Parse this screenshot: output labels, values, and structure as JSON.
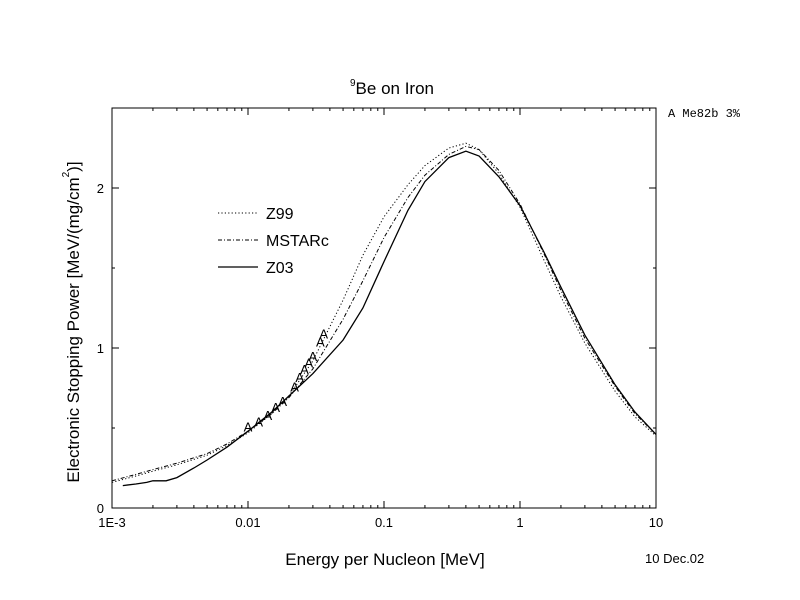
{
  "chart_data": {
    "type": "line",
    "title": {
      "superscript": "9",
      "text": "Be on Iron"
    },
    "xlabel": "Energy per Nucleon [MeV]",
    "ylabel": {
      "text": "Electronic Stopping Power [MeV/(mg/cm",
      "superscript": "2",
      "close": ")]"
    },
    "x_scale": "log",
    "xlim": [
      0.001,
      10
    ],
    "ylim": [
      0,
      2.5
    ],
    "x_ticks": [
      {
        "value": 0.001,
        "label": "1E-3"
      },
      {
        "value": 0.01,
        "label": "0.01"
      },
      {
        "value": 0.1,
        "label": "0.1"
      },
      {
        "value": 1,
        "label": "1"
      },
      {
        "value": 10,
        "label": "10"
      }
    ],
    "y_ticks": [
      {
        "value": 0,
        "label": "0"
      },
      {
        "value": 1,
        "label": "1"
      },
      {
        "value": 2,
        "label": "2"
      }
    ],
    "annotation_top_right": "A Me82b 3%",
    "date_label": "10 Dec.02",
    "legend_position": "upper-left",
    "series": [
      {
        "name": "Z99",
        "style": "dotted",
        "x": [
          0.001,
          0.0015,
          0.002,
          0.003,
          0.005,
          0.007,
          0.01,
          0.015,
          0.02,
          0.03,
          0.05,
          0.07,
          0.1,
          0.15,
          0.2,
          0.3,
          0.4,
          0.5,
          0.7,
          1,
          1.5,
          2,
          3,
          5,
          7,
          10
        ],
        "y": [
          0.16,
          0.2,
          0.23,
          0.27,
          0.33,
          0.39,
          0.47,
          0.59,
          0.7,
          0.92,
          1.3,
          1.58,
          1.82,
          2.02,
          2.14,
          2.25,
          2.28,
          2.24,
          2.09,
          1.88,
          1.55,
          1.32,
          1.03,
          0.73,
          0.57,
          0.45
        ]
      },
      {
        "name": "MSTARc",
        "style": "dashdot",
        "x": [
          0.001,
          0.0015,
          0.002,
          0.003,
          0.005,
          0.007,
          0.01,
          0.015,
          0.02,
          0.03,
          0.05,
          0.07,
          0.1,
          0.15,
          0.2,
          0.3,
          0.4,
          0.5,
          0.7,
          1,
          1.5,
          2,
          3,
          5,
          7,
          10
        ],
        "y": [
          0.17,
          0.21,
          0.24,
          0.28,
          0.34,
          0.4,
          0.48,
          0.59,
          0.69,
          0.87,
          1.18,
          1.42,
          1.69,
          1.94,
          2.08,
          2.21,
          2.26,
          2.24,
          2.11,
          1.9,
          1.59,
          1.36,
          1.06,
          0.76,
          0.59,
          0.46
        ]
      },
      {
        "name": "Z03",
        "style": "solid",
        "x": [
          0.0012,
          0.0015,
          0.0018,
          0.002,
          0.0025,
          0.003,
          0.004,
          0.005,
          0.007,
          0.01,
          0.015,
          0.02,
          0.03,
          0.05,
          0.07,
          0.1,
          0.15,
          0.2,
          0.3,
          0.4,
          0.5,
          0.7,
          1,
          1.5,
          2,
          3,
          5,
          7,
          10
        ],
        "y": [
          0.14,
          0.15,
          0.16,
          0.17,
          0.17,
          0.19,
          0.25,
          0.3,
          0.38,
          0.48,
          0.6,
          0.7,
          0.84,
          1.05,
          1.25,
          1.54,
          1.86,
          2.04,
          2.19,
          2.23,
          2.2,
          2.07,
          1.89,
          1.6,
          1.38,
          1.08,
          0.77,
          0.6,
          0.46
        ]
      }
    ],
    "experimental": {
      "label": "A",
      "x": [
        0.01,
        0.012,
        0.014,
        0.016,
        0.018,
        0.022,
        0.024,
        0.026,
        0.028,
        0.03,
        0.034,
        0.036
      ],
      "y": [
        0.51,
        0.54,
        0.58,
        0.63,
        0.67,
        0.76,
        0.82,
        0.87,
        0.91,
        0.95,
        1.04,
        1.09
      ]
    }
  }
}
